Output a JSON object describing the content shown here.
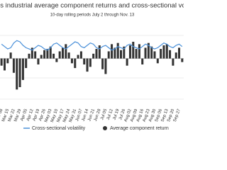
{
  "chart_data": {
    "type": "bar",
    "title": "Dow Jones industrial average component returns and cross-sectional volatility",
    "subtitle": "10-day rolling periods July 2 through Nov. 13",
    "categories": [
      "Mar 08",
      null,
      "Mar 15",
      null,
      "Mar 22",
      null,
      "Mar 29",
      null,
      "Apr 05",
      null,
      "Apr 12",
      null,
      "Apr 19",
      null,
      "Apr 26",
      null,
      "May 03",
      null,
      "May 10",
      null,
      "May 17",
      null,
      "May 24",
      null,
      "May 31",
      null,
      "Jun 07",
      null,
      "Jun 14",
      null,
      "Jun 21",
      null,
      "Jun 28",
      null,
      "Jul 05",
      null,
      "Jul 12",
      null,
      "Jul 19",
      null,
      "Jul 26",
      null,
      "Aug 02",
      null,
      "Aug 09",
      null,
      "Aug 16",
      null,
      "Aug 23",
      null,
      "Aug 30",
      null,
      "Sep 06",
      null,
      "Sep 13",
      null,
      "Sep 20",
      null,
      "Sep 27",
      null
    ],
    "series": [
      {
        "name": "Cross-sectional volatility",
        "type": "line",
        "color": "#4a90d9",
        "values": [
          1.2,
          1.0,
          0.8,
          0.9,
          1.3,
          1.5,
          1.4,
          1.1,
          0.9,
          0.8,
          0.7,
          0.9,
          1.1,
          1.0,
          0.8,
          0.7,
          0.9,
          1.2,
          1.3,
          1.1,
          0.9,
          0.8,
          1.0,
          1.2,
          1.4,
          1.3,
          1.0,
          0.9,
          1.1,
          1.3,
          1.2,
          0.9,
          0.8,
          1.0,
          1.1,
          0.9,
          0.7,
          0.8,
          1.0,
          0.9,
          0.8,
          1.1,
          1.2,
          1.0,
          0.9,
          0.8,
          1.0,
          1.2,
          1.1,
          0.9,
          0.8,
          0.9,
          1.1,
          1.3,
          1.2,
          1.0,
          0.9,
          1.1,
          1.2,
          1.0
        ]
      },
      {
        "name": "Average component return",
        "type": "bar",
        "color": "#333333",
        "values": [
          -0.6,
          -1.0,
          -0.4,
          0.5,
          -1.2,
          -2.6,
          -2.4,
          -1.8,
          -0.8,
          0.4,
          0.9,
          0.6,
          -0.5,
          0.3,
          0.7,
          0.8,
          1.0,
          0.4,
          -0.3,
          0.6,
          0.9,
          1.2,
          0.5,
          -0.4,
          -0.8,
          0.3,
          0.6,
          -0.5,
          -1.1,
          -0.7,
          0.4,
          0.8,
          1.1,
          -0.9,
          -1.3,
          0.6,
          1.2,
          0.9,
          1.3,
          0.7,
          1.0,
          -0.6,
          1.1,
          1.4,
          0.8,
          1.2,
          -0.5,
          0.9,
          1.3,
          1.0,
          0.6,
          -0.4,
          0.8,
          1.1,
          1.2,
          0.7,
          -0.6,
          0.5,
          0.9,
          -0.3
        ]
      }
    ],
    "ylim": [
      -4,
      3
    ]
  }
}
